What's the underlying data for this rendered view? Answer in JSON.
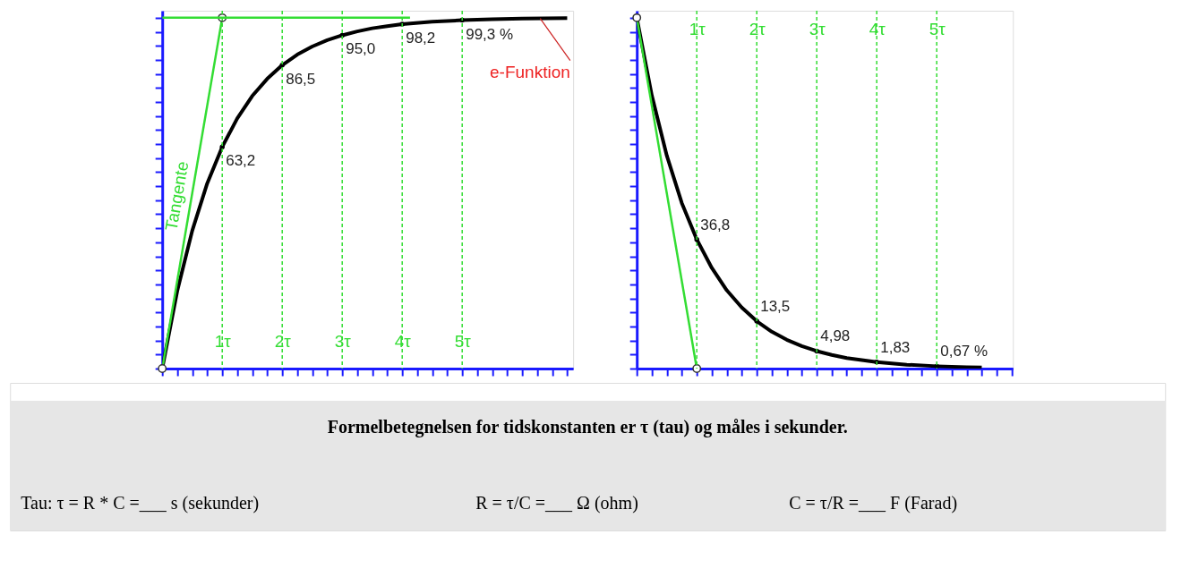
{
  "chart_data": [
    {
      "type": "line",
      "xlim": [
        0,
        6.85
      ],
      "ylim": [
        0,
        102
      ],
      "tick_labels": "x",
      "grid": false,
      "xticks": [
        {
          "value": 0,
          "label": null
        },
        {
          "value": 0.25,
          "label": null
        },
        {
          "value": 0.5,
          "label": null
        },
        {
          "value": 0.75,
          "label": null
        },
        {
          "value": 1,
          "label": "1τ"
        },
        {
          "value": 1.25,
          "label": null
        },
        {
          "value": 1.5,
          "label": null
        },
        {
          "value": 1.75,
          "label": null
        },
        {
          "value": 2,
          "label": "2τ"
        },
        {
          "value": 2.25,
          "label": null
        },
        {
          "value": 2.5,
          "label": null
        },
        {
          "value": 2.75,
          "label": null
        },
        {
          "value": 3,
          "label": "3τ"
        },
        {
          "value": 3.25,
          "label": null
        },
        {
          "value": 3.5,
          "label": null
        },
        {
          "value": 3.75,
          "label": null
        },
        {
          "value": 4,
          "label": "4τ"
        },
        {
          "value": 4.25,
          "label": null
        },
        {
          "value": 4.5,
          "label": null
        },
        {
          "value": 4.75,
          "label": null
        },
        {
          "value": 5,
          "label": "5τ"
        },
        {
          "value": 5.25,
          "label": null
        },
        {
          "value": 5.5,
          "label": null
        },
        {
          "value": 5.75,
          "label": null
        },
        {
          "value": 6,
          "label": null
        },
        {
          "value": 6.25,
          "label": null
        },
        {
          "value": 6.5,
          "label": null
        },
        {
          "value": 6.75,
          "label": null
        }
      ],
      "yticks": [
        {
          "value": 0,
          "label": null
        },
        {
          "value": 4,
          "label": null
        },
        {
          "value": 8,
          "label": null
        },
        {
          "value": 12,
          "label": null
        },
        {
          "value": 16,
          "label": null
        },
        {
          "value": 20,
          "label": null
        },
        {
          "value": 24,
          "label": null
        },
        {
          "value": 28,
          "label": null
        },
        {
          "value": 32,
          "label": null
        },
        {
          "value": 36,
          "label": null
        },
        {
          "value": 40,
          "label": null
        },
        {
          "value": 44,
          "label": null
        },
        {
          "value": 48,
          "label": null
        },
        {
          "value": 52,
          "label": null
        },
        {
          "value": 56,
          "label": null
        },
        {
          "value": 60,
          "label": null
        },
        {
          "value": 64,
          "label": null
        },
        {
          "value": 68,
          "label": null
        },
        {
          "value": 72,
          "label": null
        },
        {
          "value": 76,
          "label": null
        },
        {
          "value": 80,
          "label": null
        },
        {
          "value": 84,
          "label": null
        },
        {
          "value": 88,
          "label": null
        },
        {
          "value": 92,
          "label": null
        },
        {
          "value": 96,
          "label": null
        },
        {
          "value": 100,
          "label": null
        }
      ],
      "series": [
        {
          "type": "line",
          "color": "#000000",
          "marker": "none",
          "x": [
            0,
            0.25,
            0.5,
            0.75,
            1,
            1.25,
            1.5,
            1.75,
            2,
            2.25,
            2.5,
            2.75,
            3,
            3.25,
            3.5,
            3.75,
            4,
            4.5,
            5,
            5.5,
            6,
            6.75
          ],
          "values": [
            0,
            22.1,
            39.3,
            52.8,
            63.2,
            71.3,
            77.7,
            82.6,
            86.5,
            89.5,
            91.8,
            93.6,
            95.0,
            96.1,
            97.0,
            97.6,
            98.2,
            98.9,
            99.3,
            99.6,
            99.8,
            99.9
          ],
          "value_labels": [
            null,
            null,
            null,
            null,
            "63,2",
            null,
            null,
            null,
            "86,5",
            null,
            null,
            null,
            "95,0",
            null,
            null,
            null,
            "98,2",
            null,
            "99,3 %",
            null,
            null,
            null
          ]
        },
        {
          "type": "line",
          "name": "Tangente",
          "color": "#33dd33",
          "marker": "circle",
          "x": [
            0,
            1
          ],
          "values": [
            0,
            100
          ]
        },
        {
          "type": "line",
          "color": "#33dd33",
          "marker": "none",
          "x": [
            0,
            4.13
          ],
          "values": [
            100,
            100
          ]
        }
      ],
      "ref_lines": [
        {
          "axis": "x",
          "value": 1,
          "color": "#33dd33",
          "line_style": "dashed"
        },
        {
          "axis": "x",
          "value": 2,
          "color": "#33dd33",
          "line_style": "dashed"
        },
        {
          "axis": "x",
          "value": 3,
          "color": "#33dd33",
          "line_style": "dashed"
        },
        {
          "axis": "x",
          "value": 4,
          "color": "#33dd33",
          "line_style": "dashed"
        },
        {
          "axis": "x",
          "value": 5,
          "color": "#33dd33",
          "line_style": "dashed"
        }
      ],
      "annotations": [
        {
          "text": "e-Funktion",
          "x": 6.3,
          "y": 99.8
        }
      ]
    },
    {
      "type": "line",
      "xlim": [
        0,
        6.27
      ],
      "ylim": [
        0,
        102
      ],
      "tick_labels": "x",
      "grid": false,
      "xticks": [
        {
          "value": 0,
          "label": null
        },
        {
          "value": 0.25,
          "label": null
        },
        {
          "value": 0.5,
          "label": null
        },
        {
          "value": 0.75,
          "label": null
        },
        {
          "value": 1,
          "label": "1τ"
        },
        {
          "value": 1.25,
          "label": null
        },
        {
          "value": 1.5,
          "label": null
        },
        {
          "value": 1.75,
          "label": null
        },
        {
          "value": 2,
          "label": "2τ"
        },
        {
          "value": 2.25,
          "label": null
        },
        {
          "value": 2.5,
          "label": null
        },
        {
          "value": 2.75,
          "label": null
        },
        {
          "value": 3,
          "label": "3τ"
        },
        {
          "value": 3.25,
          "label": null
        },
        {
          "value": 3.5,
          "label": null
        },
        {
          "value": 3.75,
          "label": null
        },
        {
          "value": 4,
          "label": "4τ"
        },
        {
          "value": 4.25,
          "label": null
        },
        {
          "value": 4.5,
          "label": null
        },
        {
          "value": 4.75,
          "label": null
        },
        {
          "value": 5,
          "label": "5τ"
        },
        {
          "value": 5.25,
          "label": null
        },
        {
          "value": 5.5,
          "label": null
        },
        {
          "value": 5.75,
          "label": null
        },
        {
          "value": 6,
          "label": null
        },
        {
          "value": 6.25,
          "label": null
        }
      ],
      "yticks": [
        {
          "value": 0,
          "label": null
        },
        {
          "value": 4,
          "label": null
        },
        {
          "value": 8,
          "label": null
        },
        {
          "value": 12,
          "label": null
        },
        {
          "value": 16,
          "label": null
        },
        {
          "value": 20,
          "label": null
        },
        {
          "value": 24,
          "label": null
        },
        {
          "value": 28,
          "label": null
        },
        {
          "value": 32,
          "label": null
        },
        {
          "value": 36,
          "label": null
        },
        {
          "value": 40,
          "label": null
        },
        {
          "value": 44,
          "label": null
        },
        {
          "value": 48,
          "label": null
        },
        {
          "value": 52,
          "label": null
        },
        {
          "value": 56,
          "label": null
        },
        {
          "value": 60,
          "label": null
        },
        {
          "value": 64,
          "label": null
        },
        {
          "value": 68,
          "label": null
        },
        {
          "value": 72,
          "label": null
        },
        {
          "value": 76,
          "label": null
        },
        {
          "value": 80,
          "label": null
        },
        {
          "value": 84,
          "label": null
        },
        {
          "value": 88,
          "label": null
        },
        {
          "value": 92,
          "label": null
        },
        {
          "value": 96,
          "label": null
        },
        {
          "value": 100,
          "label": null
        }
      ],
      "series": [
        {
          "type": "line",
          "color": "#000000",
          "marker": "none",
          "x": [
            0,
            0.25,
            0.5,
            0.75,
            1,
            1.25,
            1.5,
            1.75,
            2,
            2.25,
            2.5,
            2.75,
            3,
            3.25,
            3.5,
            3.75,
            4,
            4.5,
            5,
            5.5,
            5.75
          ],
          "values": [
            100,
            77.9,
            60.7,
            47.2,
            36.8,
            28.7,
            22.3,
            17.4,
            13.5,
            10.5,
            8.2,
            6.4,
            4.98,
            3.9,
            3.0,
            2.4,
            1.83,
            1.1,
            0.67,
            0.41,
            0.32
          ],
          "value_labels": [
            null,
            null,
            null,
            null,
            "36,8",
            null,
            null,
            null,
            "13,5",
            null,
            null,
            null,
            "4,98",
            null,
            null,
            null,
            "1,83",
            null,
            "0,67 %",
            null,
            null
          ]
        },
        {
          "type": "line",
          "color": "#33dd33",
          "marker": "circle",
          "x": [
            0,
            1
          ],
          "values": [
            100,
            0
          ]
        }
      ],
      "ref_lines": [
        {
          "axis": "x",
          "value": 1,
          "color": "#33dd33",
          "line_style": "dashed"
        },
        {
          "axis": "x",
          "value": 2,
          "color": "#33dd33",
          "line_style": "dashed"
        },
        {
          "axis": "x",
          "value": 3,
          "color": "#33dd33",
          "line_style": "dashed"
        },
        {
          "axis": "x",
          "value": 4,
          "color": "#33dd33",
          "line_style": "dashed"
        },
        {
          "axis": "x",
          "value": 5,
          "color": "#33dd33",
          "line_style": "dashed"
        }
      ]
    },
    {
      "type": "other",
      "title": "Formelbetegnelsen  for tidskonstanten er τ (tau) og måles i sekunder.",
      "annotations": [
        "Tau: τ = R * C =___ s (sekunder)",
        "R = τ/C =___ Ω (ohm)",
        "C = τ/R =___ F (Farad)"
      ]
    }
  ]
}
